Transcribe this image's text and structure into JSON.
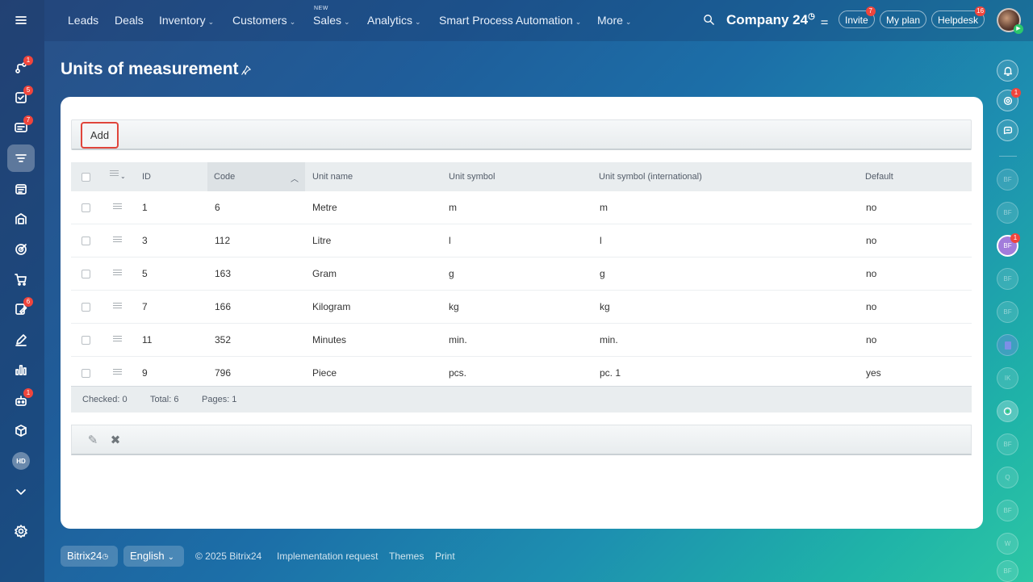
{
  "topbar": {
    "nav": [
      {
        "label": "Leads",
        "has_menu": false
      },
      {
        "label": "Deals",
        "has_menu": false
      },
      {
        "label": "Inventory",
        "has_menu": true
      },
      {
        "label": "Customers",
        "has_menu": true
      },
      {
        "label": "Sales",
        "has_menu": true,
        "tag": "NEW"
      },
      {
        "label": "Analytics",
        "has_menu": true
      },
      {
        "label": "Smart Process Automation",
        "has_menu": true
      },
      {
        "label": "More",
        "has_menu": true
      }
    ],
    "company": "Company 24",
    "invite": {
      "label": "Invite",
      "badge": "7"
    },
    "my_plan": "My plan",
    "helpdesk": {
      "label": "Helpdesk",
      "badge": "16"
    }
  },
  "left_rail": {
    "badges": {
      "activity": "1",
      "tasks": "5",
      "chat": "7",
      "docs": "6",
      "automation": "1"
    },
    "hd_avatar": "HD"
  },
  "page": {
    "title": "Units of measurement"
  },
  "toolbar": {
    "add_label": "Add"
  },
  "grid": {
    "columns": [
      "ID",
      "Code",
      "Unit name",
      "Unit symbol",
      "Unit symbol (international)",
      "Default"
    ],
    "rows": [
      {
        "id": "1",
        "code": "6",
        "name": "Metre",
        "symbol": "m",
        "intl": "m",
        "default": "no"
      },
      {
        "id": "3",
        "code": "112",
        "name": "Litre",
        "symbol": "l",
        "intl": "l",
        "default": "no"
      },
      {
        "id": "5",
        "code": "163",
        "name": "Gram",
        "symbol": "g",
        "intl": "g",
        "default": "no"
      },
      {
        "id": "7",
        "code": "166",
        "name": "Kilogram",
        "symbol": "kg",
        "intl": "kg",
        "default": "no"
      },
      {
        "id": "11",
        "code": "352",
        "name": "Minutes",
        "symbol": "min.",
        "intl": "min.",
        "default": "no"
      },
      {
        "id": "9",
        "code": "796",
        "name": "Piece",
        "symbol": "pcs.",
        "intl": "pc. 1",
        "default": "yes"
      }
    ],
    "footer": {
      "checked": "Checked: 0",
      "total": "Total: 6",
      "pages": "Pages:  1"
    }
  },
  "right_rail": {
    "badges": {
      "copilot": "1",
      "avatar3": "1"
    },
    "avatars": [
      "BF",
      "BF",
      "BF",
      "BF",
      "BF",
      "",
      "IK",
      "",
      "BF",
      "Q",
      "BF",
      "W",
      "BF"
    ]
  },
  "bottom": {
    "brand": "Bitrix24",
    "language": "English",
    "copyright": "© 2025 Bitrix24",
    "implementation": "Implementation request",
    "themes": "Themes",
    "print": "Print"
  },
  "colors": {
    "accent_red": "#e0453b",
    "badge": "#f0453c",
    "purple_avatar": "#a27cdb"
  }
}
